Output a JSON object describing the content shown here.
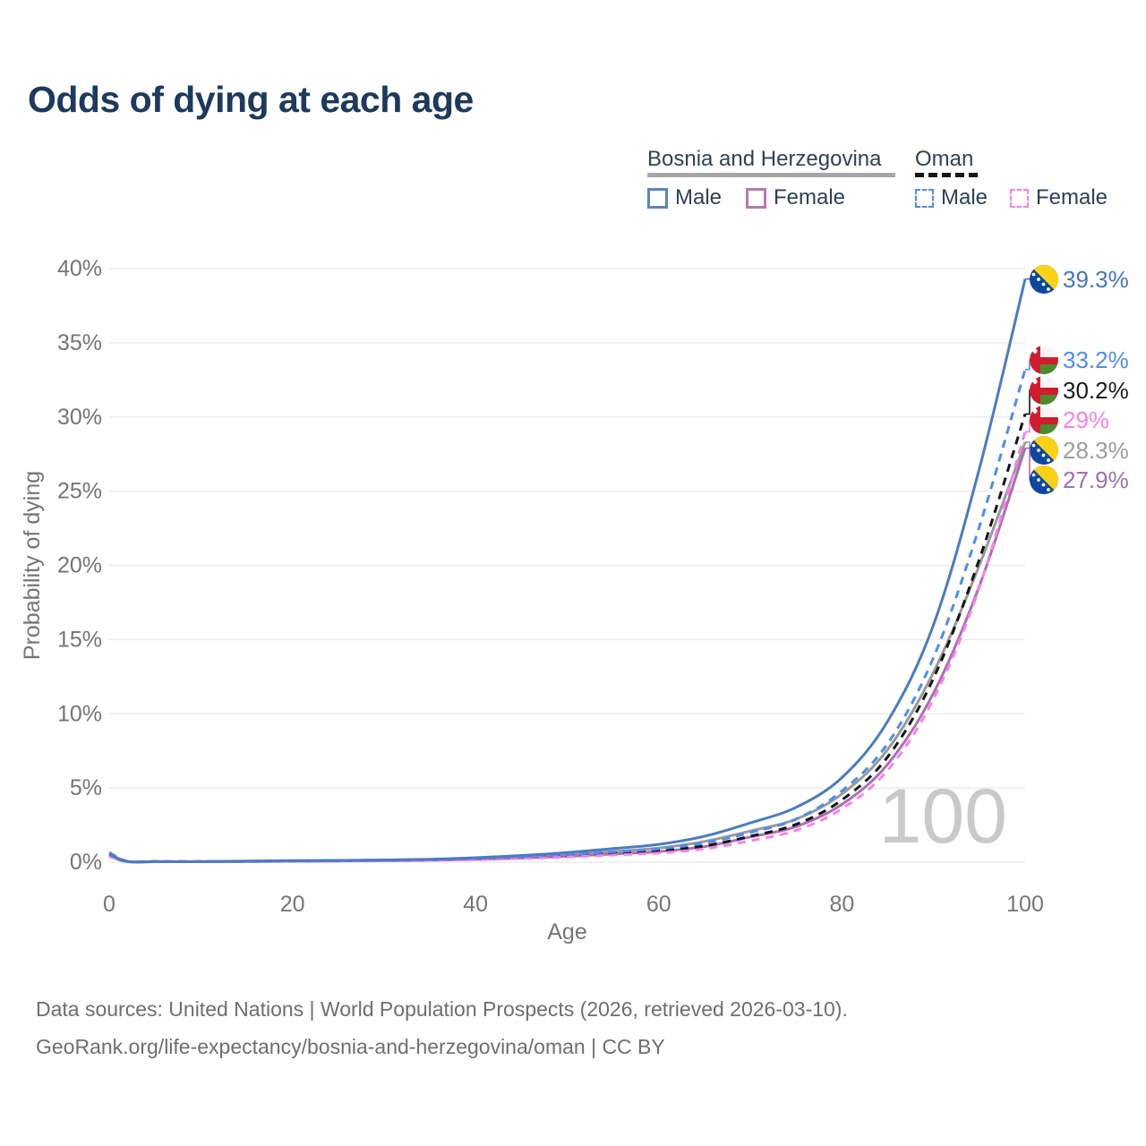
{
  "title": "Odds of dying at each age",
  "legend": {
    "groups": [
      {
        "country": "Bosnia and Herzegovina",
        "line_style": "solid",
        "underline_color": "#a6a6a6",
        "items": [
          {
            "label": "Male",
            "color": "#4a7bc4",
            "dashed": false
          },
          {
            "label": "Female",
            "color": "#a96fb1",
            "dashed": false
          }
        ]
      },
      {
        "country": "Oman",
        "line_style": "dashed",
        "underline_color": "#151515",
        "items": [
          {
            "label": "Male",
            "color": "#4d8cf2",
            "dashed": true
          },
          {
            "label": "Female",
            "color": "#fb80e6",
            "dashed": true
          }
        ]
      }
    ]
  },
  "chart_data": {
    "type": "line",
    "title": "Odds of dying at each age",
    "xlabel": "Age",
    "ylabel": "Probability of dying",
    "xlim": [
      0,
      100
    ],
    "ylim": [
      0,
      40
    ],
    "x_ticks": [
      0,
      20,
      40,
      60,
      80,
      100
    ],
    "y_ticks": [
      "0%",
      "5%",
      "10%",
      "15%",
      "20%",
      "25%",
      "30%",
      "35%",
      "40%"
    ],
    "grid": true,
    "watermark": "100",
    "ages": [
      0,
      2,
      5,
      10,
      15,
      20,
      25,
      30,
      35,
      40,
      45,
      50,
      55,
      60,
      65,
      70,
      75,
      80,
      85,
      90,
      95,
      100
    ],
    "unit": "percent",
    "series": [
      {
        "name": "Bosnia and Herzegovina — Male",
        "country": "Bosnia and Herzegovina",
        "sex": "Male",
        "color": "#4a7bc4",
        "label_color": "#4577b8",
        "dashed": false,
        "flag": "bih",
        "end_label": "39.3%",
        "end_value": 39.3,
        "values": [
          0.55,
          0.05,
          0.04,
          0.04,
          0.08,
          0.1,
          0.12,
          0.15,
          0.2,
          0.3,
          0.45,
          0.65,
          0.92,
          1.2,
          1.75,
          2.65,
          3.7,
          5.7,
          9.5,
          16.0,
          26.5,
          39.3
        ]
      },
      {
        "name": "Oman — Male",
        "country": "Oman",
        "sex": "Male",
        "color": "#4d8cf2",
        "label_color": "#4d8cf2",
        "dashed": true,
        "flag": "oman",
        "end_label": "33.2%",
        "end_value": 33.2,
        "values": [
          0.65,
          0.06,
          0.05,
          0.04,
          0.06,
          0.09,
          0.11,
          0.14,
          0.18,
          0.26,
          0.38,
          0.52,
          0.7,
          0.9,
          1.3,
          2.0,
          2.9,
          4.8,
          8.0,
          13.8,
          22.6,
          33.2
        ]
      },
      {
        "name": "Oman — Both sexes",
        "country": "Oman",
        "sex": "Both",
        "color": "#151515",
        "label_color": "#1a1a1a",
        "dashed": true,
        "flag": "oman",
        "end_label": "30.2%",
        "end_value": 30.2,
        "values": [
          0.55,
          0.05,
          0.04,
          0.04,
          0.05,
          0.07,
          0.09,
          0.11,
          0.15,
          0.21,
          0.31,
          0.44,
          0.6,
          0.78,
          1.1,
          1.75,
          2.55,
          4.2,
          7.1,
          12.4,
          20.4,
          30.2
        ]
      },
      {
        "name": "Oman — Female",
        "country": "Oman",
        "sex": "Female",
        "color": "#fb80e6",
        "label_color": "#f97fe6",
        "dashed": true,
        "flag": "oman",
        "end_label": "29%",
        "end_value": 29.0,
        "values": [
          0.45,
          0.04,
          0.03,
          0.03,
          0.04,
          0.06,
          0.07,
          0.09,
          0.12,
          0.17,
          0.25,
          0.35,
          0.48,
          0.62,
          0.9,
          1.45,
          2.15,
          3.6,
          6.2,
          11.0,
          18.5,
          29.0
        ]
      },
      {
        "name": "Bosnia and Herzegovina — Both sexes",
        "country": "Bosnia and Herzegovina",
        "sex": "Both",
        "color": "#999999",
        "label_color": "#9c9c9c",
        "dashed": false,
        "flag": "bih",
        "end_label": "28.3%",
        "end_value": 28.3,
        "values": [
          0.5,
          0.04,
          0.03,
          0.03,
          0.06,
          0.08,
          0.1,
          0.12,
          0.16,
          0.24,
          0.36,
          0.52,
          0.72,
          0.95,
          1.4,
          2.1,
          2.9,
          4.6,
          7.6,
          12.8,
          20.0,
          28.3
        ]
      },
      {
        "name": "Bosnia and Herzegovina — Female",
        "country": "Bosnia and Herzegovina",
        "sex": "Female",
        "color": "#a96fb1",
        "label_color": "#a46fb0",
        "dashed": false,
        "flag": "bih",
        "end_label": "27.9%",
        "end_value": 27.9,
        "values": [
          0.4,
          0.03,
          0.03,
          0.03,
          0.05,
          0.06,
          0.08,
          0.1,
          0.13,
          0.19,
          0.28,
          0.4,
          0.55,
          0.72,
          1.05,
          1.7,
          2.4,
          3.9,
          6.6,
          11.4,
          18.6,
          27.9
        ]
      }
    ]
  },
  "footer": {
    "line1": "Data sources: United Nations | World Population Prospects (2026, retrieved 2026-03-10).",
    "line2": "GeoRank.org/life-expectancy/bosnia-and-herzegovina/oman | CC BY"
  },
  "flags": {
    "bih": {
      "name": "Bosnia and Herzegovina",
      "blue": "#0d47a1",
      "yellow": "#fdd116",
      "star": "#ffffff"
    },
    "oman": {
      "name": "Oman",
      "red": "#d01c2f",
      "green": "#4a8b2c",
      "white": "#f5f5f5"
    }
  }
}
